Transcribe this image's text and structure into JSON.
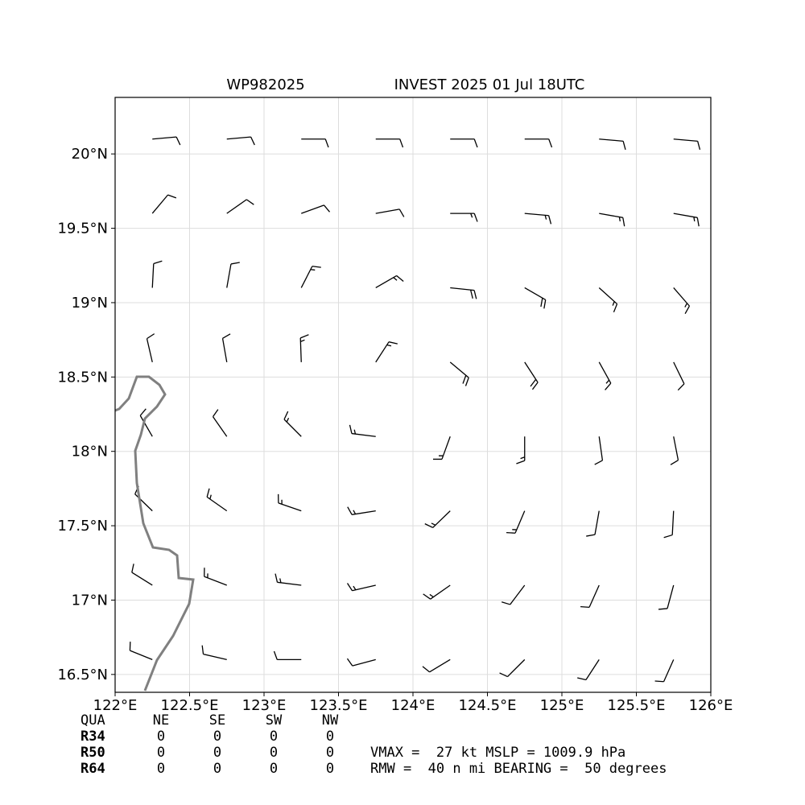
{
  "chart_data": {
    "type": "wind_barbs",
    "storm_id": "WP982025",
    "title": "INVEST 2025 01 Jul 18UTC",
    "xlim": [
      122,
      126.0
    ],
    "ylim": [
      16.38,
      20.38
    ],
    "xticks": [
      {
        "value": 122,
        "label": "122°E"
      },
      {
        "value": 122.5,
        "label": "122.5°E"
      },
      {
        "value": 123,
        "label": "123°E"
      },
      {
        "value": 123.5,
        "label": "123.5°E"
      },
      {
        "value": 124,
        "label": "124°E"
      },
      {
        "value": 124.5,
        "label": "124.5°E"
      },
      {
        "value": 125,
        "label": "125°E"
      },
      {
        "value": 125.5,
        "label": "125.5°E"
      },
      {
        "value": 126,
        "label": "126°E"
      }
    ],
    "yticks": [
      {
        "value": 16.5,
        "label": "16.5°N"
      },
      {
        "value": 17,
        "label": "17°N"
      },
      {
        "value": 17.5,
        "label": "17.5°N"
      },
      {
        "value": 18,
        "label": "18°N"
      },
      {
        "value": 18.5,
        "label": "18.5°N"
      },
      {
        "value": 19,
        "label": "19°N"
      },
      {
        "value": 19.5,
        "label": "19.5°N"
      },
      {
        "value": 20,
        "label": "20°N"
      }
    ],
    "grid": true,
    "barbs": {
      "color": "#000000",
      "lon": [
        122.25,
        122.75,
        123.25,
        123.75,
        124.25,
        124.75,
        125.25,
        125.75
      ],
      "lat": [
        20.1,
        19.6,
        19.1,
        18.6,
        18.1,
        17.6,
        17.1,
        16.6
      ],
      "direction": [
        [
          85,
          85,
          90,
          90,
          90,
          90,
          95,
          95
        ],
        [
          40,
          55,
          70,
          80,
          90,
          95,
          100,
          100
        ],
        [
          3,
          10,
          27,
          60,
          96,
          120,
          132,
          139
        ],
        [
          347,
          350,
          358,
          33,
          130,
          147,
          151,
          154
        ],
        [
          330,
          325,
          315,
          277,
          200,
          180,
          172,
          169
        ],
        [
          314,
          305,
          289,
          261,
          226,
          203,
          190,
          183
        ],
        [
          302,
          291,
          277,
          257,
          235,
          217,
          204,
          195
        ],
        [
          292,
          283,
          270,
          255,
          239,
          225,
          213,
          204
        ]
      ],
      "speed": [
        [
          10,
          10,
          10,
          10,
          10,
          10,
          10,
          10
        ],
        [
          10,
          10,
          10,
          10,
          15,
          15,
          15,
          15
        ],
        [
          10,
          10,
          15,
          15,
          20,
          20,
          15,
          15
        ],
        [
          10,
          10,
          15,
          15,
          20,
          20,
          15,
          10
        ],
        [
          10,
          10,
          15,
          15,
          15,
          15,
          10,
          10
        ],
        [
          10,
          15,
          15,
          15,
          15,
          15,
          10,
          10
        ],
        [
          10,
          15,
          15,
          15,
          15,
          10,
          10,
          10
        ],
        [
          10,
          10,
          10,
          10,
          10,
          10,
          10,
          10
        ]
      ]
    }
  },
  "wind_radii": {
    "header": [
      "QUA",
      "NE",
      "SE",
      "SW",
      "NW"
    ],
    "rows": [
      [
        "R34",
        0,
        0,
        0,
        0
      ],
      [
        "R50",
        0,
        0,
        0,
        0
      ],
      [
        "R64",
        0,
        0,
        0,
        0
      ]
    ]
  },
  "summary": [
    "VMAX =  27 kt MSLP = 1009.9 hPa",
    "RMW =  40 n mi BEARING =  50 degrees"
  ]
}
